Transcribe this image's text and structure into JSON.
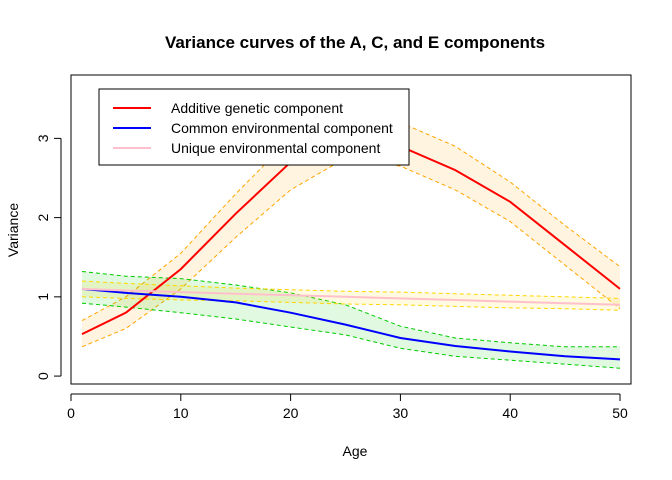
{
  "chart_data": {
    "type": "line",
    "title": "Variance curves of the A, C, and E components",
    "xlabel": "Age",
    "ylabel": "Variance",
    "xlim": [
      0,
      51
    ],
    "ylim": [
      -0.1,
      3.8
    ],
    "x_ticks": [
      0,
      10,
      20,
      30,
      40,
      50
    ],
    "y_ticks": [
      0,
      1,
      2,
      3
    ],
    "x_tick_labels": [
      "0",
      "10",
      "20",
      "30",
      "40",
      "50"
    ],
    "y_tick_labels": [
      "0",
      "1",
      "2",
      "3"
    ],
    "grid": false,
    "legend_position": "top-left",
    "x": [
      1,
      5,
      10,
      15,
      20,
      25,
      30,
      35,
      40,
      45,
      50
    ],
    "series": [
      {
        "name": "Additive genetic component",
        "color": "#ff0000",
        "band_color": "#ffa500",
        "values": [
          0.53,
          0.8,
          1.35,
          2.05,
          2.7,
          3.0,
          2.9,
          2.6,
          2.2,
          1.65,
          1.1
        ],
        "lower": [
          0.37,
          0.6,
          1.1,
          1.75,
          2.35,
          2.75,
          2.65,
          2.35,
          1.95,
          1.4,
          0.85
        ],
        "upper": [
          0.7,
          1.0,
          1.55,
          2.3,
          3.0,
          3.25,
          3.2,
          2.9,
          2.45,
          1.9,
          1.38
        ]
      },
      {
        "name": "Common environmental component",
        "color": "#0000ff",
        "band_color": "#00cc00",
        "values": [
          1.1,
          1.05,
          1.0,
          0.93,
          0.8,
          0.65,
          0.48,
          0.38,
          0.31,
          0.25,
          0.21
        ],
        "lower": [
          0.92,
          0.87,
          0.8,
          0.72,
          0.62,
          0.52,
          0.35,
          0.25,
          0.2,
          0.15,
          0.1
        ],
        "upper": [
          1.32,
          1.26,
          1.23,
          1.15,
          1.05,
          0.9,
          0.63,
          0.48,
          0.42,
          0.37,
          0.37
        ]
      },
      {
        "name": "Unique environmental component",
        "color": "#ffc0cb",
        "band_color": "#ffd700",
        "values": [
          1.1,
          1.08,
          1.06,
          1.04,
          1.02,
          1.0,
          0.98,
          0.96,
          0.94,
          0.92,
          0.9
        ],
        "lower": [
          1.0,
          0.98,
          0.96,
          0.95,
          0.93,
          0.91,
          0.9,
          0.88,
          0.86,
          0.85,
          0.83
        ],
        "upper": [
          1.2,
          1.17,
          1.14,
          1.11,
          1.09,
          1.07,
          1.06,
          1.04,
          1.02,
          1.0,
          0.98
        ]
      }
    ]
  }
}
